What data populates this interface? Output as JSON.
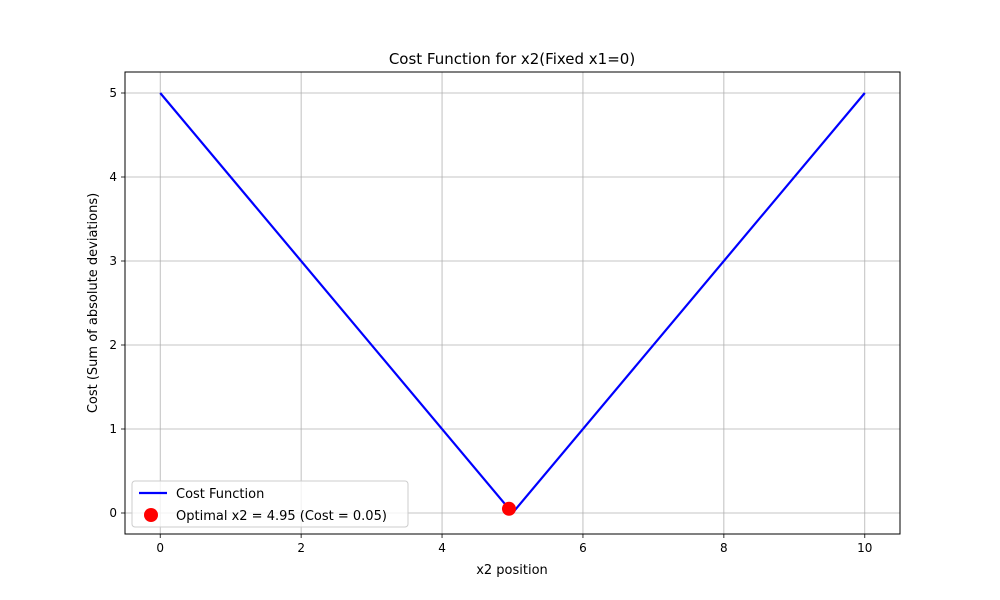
{
  "chart_data": {
    "type": "line",
    "title": "Cost Function for x2(Fixed x1=0)",
    "xlabel": "x2 position",
    "ylabel": "Cost (Sum of absolute deviations)",
    "xlim": [
      -0.5,
      10.5
    ],
    "ylim": [
      -0.25,
      5.25
    ],
    "xticks": [
      0,
      2,
      4,
      6,
      8,
      10
    ],
    "yticks": [
      0,
      1,
      2,
      3,
      4,
      5
    ],
    "grid": true,
    "legend_position": "lower-left",
    "series": [
      {
        "name": "Cost Function",
        "kind": "line",
        "color": "#0000ff",
        "x": [
          0,
          5,
          10
        ],
        "y": [
          5,
          0,
          5
        ]
      },
      {
        "name": "Optimal x2 = 4.95 (Cost = 0.05)",
        "kind": "scatter",
        "color": "#ff0000",
        "x": [
          4.95
        ],
        "y": [
          0.05
        ]
      }
    ]
  }
}
